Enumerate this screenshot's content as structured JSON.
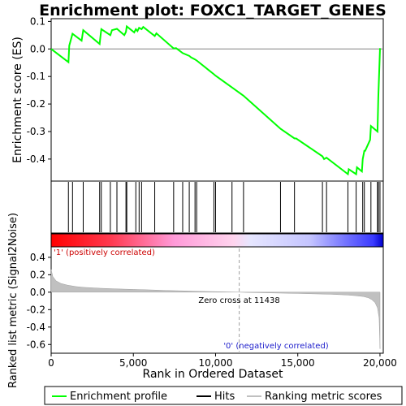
{
  "chart_data": [
    {
      "type": "line",
      "title": "Enrichment plot: FOXC1_TARGET_GENES",
      "ylabel": "Enrichment score (ES)",
      "ylim": [
        -0.48,
        0.11
      ],
      "yticks": [
        "0.1",
        "0.0",
        "-0.1",
        "-0.2",
        "-0.3",
        "-0.4"
      ],
      "ytick_values": [
        0.1,
        0.0,
        -0.1,
        -0.2,
        -0.3,
        -0.4
      ],
      "xlim": [
        0,
        20200
      ],
      "grid": false,
      "series": [
        {
          "name": "Enrichment profile",
          "color": "#00ff00",
          "x": [
            0,
            1050,
            1100,
            1300,
            1850,
            1950,
            2950,
            3000,
            3050,
            3600,
            3700,
            4000,
            4450,
            4550,
            4600,
            5050,
            5150,
            5250,
            5350,
            5500,
            5600,
            6300,
            6400,
            7450,
            7600,
            8000,
            8400,
            8500,
            8750,
            8850,
            9900,
            10000,
            11000,
            11700,
            13950,
            14800,
            14900,
            16500,
            16600,
            16750,
            18050,
            18100,
            18550,
            18600,
            18900,
            18950,
            19050,
            19100,
            19400,
            19450,
            19850,
            19900,
            20000
          ],
          "y": [
            0.0,
            -0.048,
            0.012,
            0.055,
            0.03,
            0.068,
            0.018,
            0.045,
            0.072,
            0.05,
            0.068,
            0.073,
            0.05,
            0.062,
            0.082,
            0.06,
            0.072,
            0.065,
            0.077,
            0.072,
            0.08,
            0.047,
            0.057,
            0.002,
            0.003,
            -0.015,
            -0.025,
            -0.03,
            -0.038,
            -0.042,
            -0.092,
            -0.097,
            -0.14,
            -0.17,
            -0.29,
            -0.325,
            -0.325,
            -0.39,
            -0.4,
            -0.395,
            -0.455,
            -0.437,
            -0.455,
            -0.43,
            -0.445,
            -0.4,
            -0.37,
            -0.37,
            -0.33,
            -0.28,
            -0.3,
            -0.175,
            0.003
          ]
        }
      ],
      "hits": [
        1050,
        1300,
        1950,
        2950,
        3050,
        3600,
        4000,
        4550,
        4600,
        5150,
        5350,
        5500,
        6300,
        7450,
        8000,
        8400,
        8750,
        8850,
        9900,
        10000,
        11000,
        11700,
        13950,
        14800,
        16500,
        16750,
        18050,
        18550,
        18950,
        19050,
        19450,
        19850,
        19900,
        20000
      ]
    },
    {
      "type": "area",
      "xlabel": "Rank in Ordered Dataset",
      "ylabel": "Ranked list metric (Signal2Noise)",
      "ylim": [
        -0.7,
        0.52
      ],
      "yticks": [
        "0.4",
        "0.2",
        "0.0",
        "-0.2",
        "-0.4",
        "-0.6"
      ],
      "ytick_values": [
        0.4,
        0.2,
        0.0,
        -0.2,
        -0.4,
        -0.6
      ],
      "xlim": [
        0,
        20200
      ],
      "xticks": [
        "0",
        "5,000",
        "10,000",
        "15,000",
        "20,000"
      ],
      "xtick_values": [
        0,
        5000,
        10000,
        15000,
        20000
      ],
      "zero_cross": 11438,
      "zero_cross_label": "Zero cross at 11438",
      "positive_label": "'1' (positively correlated)",
      "negative_label": "'0' (negatively correlated)",
      "series": [
        {
          "name": "Ranking metric scores",
          "color": "#c0c0c0",
          "x": [
            0,
            100,
            300,
            600,
            1000,
            1500,
            2000,
            3000,
            4000,
            5000,
            6000,
            7000,
            8000,
            9000,
            10000,
            11000,
            11438,
            12000,
            13000,
            14000,
            15000,
            16000,
            17000,
            18000,
            18500,
            19000,
            19300,
            19500,
            19700,
            19850,
            19950,
            20000
          ],
          "y": [
            0.26,
            0.18,
            0.13,
            0.1,
            0.08,
            0.065,
            0.055,
            0.045,
            0.038,
            0.032,
            0.026,
            0.02,
            0.015,
            0.01,
            0.006,
            0.002,
            0.0,
            -0.003,
            -0.007,
            -0.011,
            -0.015,
            -0.019,
            -0.024,
            -0.032,
            -0.04,
            -0.05,
            -0.065,
            -0.085,
            -0.12,
            -0.18,
            -0.3,
            -0.65
          ]
        }
      ]
    }
  ],
  "legend": {
    "placement": "bottom",
    "items": [
      {
        "label": "Enrichment profile",
        "color": "#00ff00"
      },
      {
        "label": "Hits",
        "color": "#000000"
      },
      {
        "label": "Ranking metric scores",
        "color": "#c0c0c0"
      }
    ]
  }
}
